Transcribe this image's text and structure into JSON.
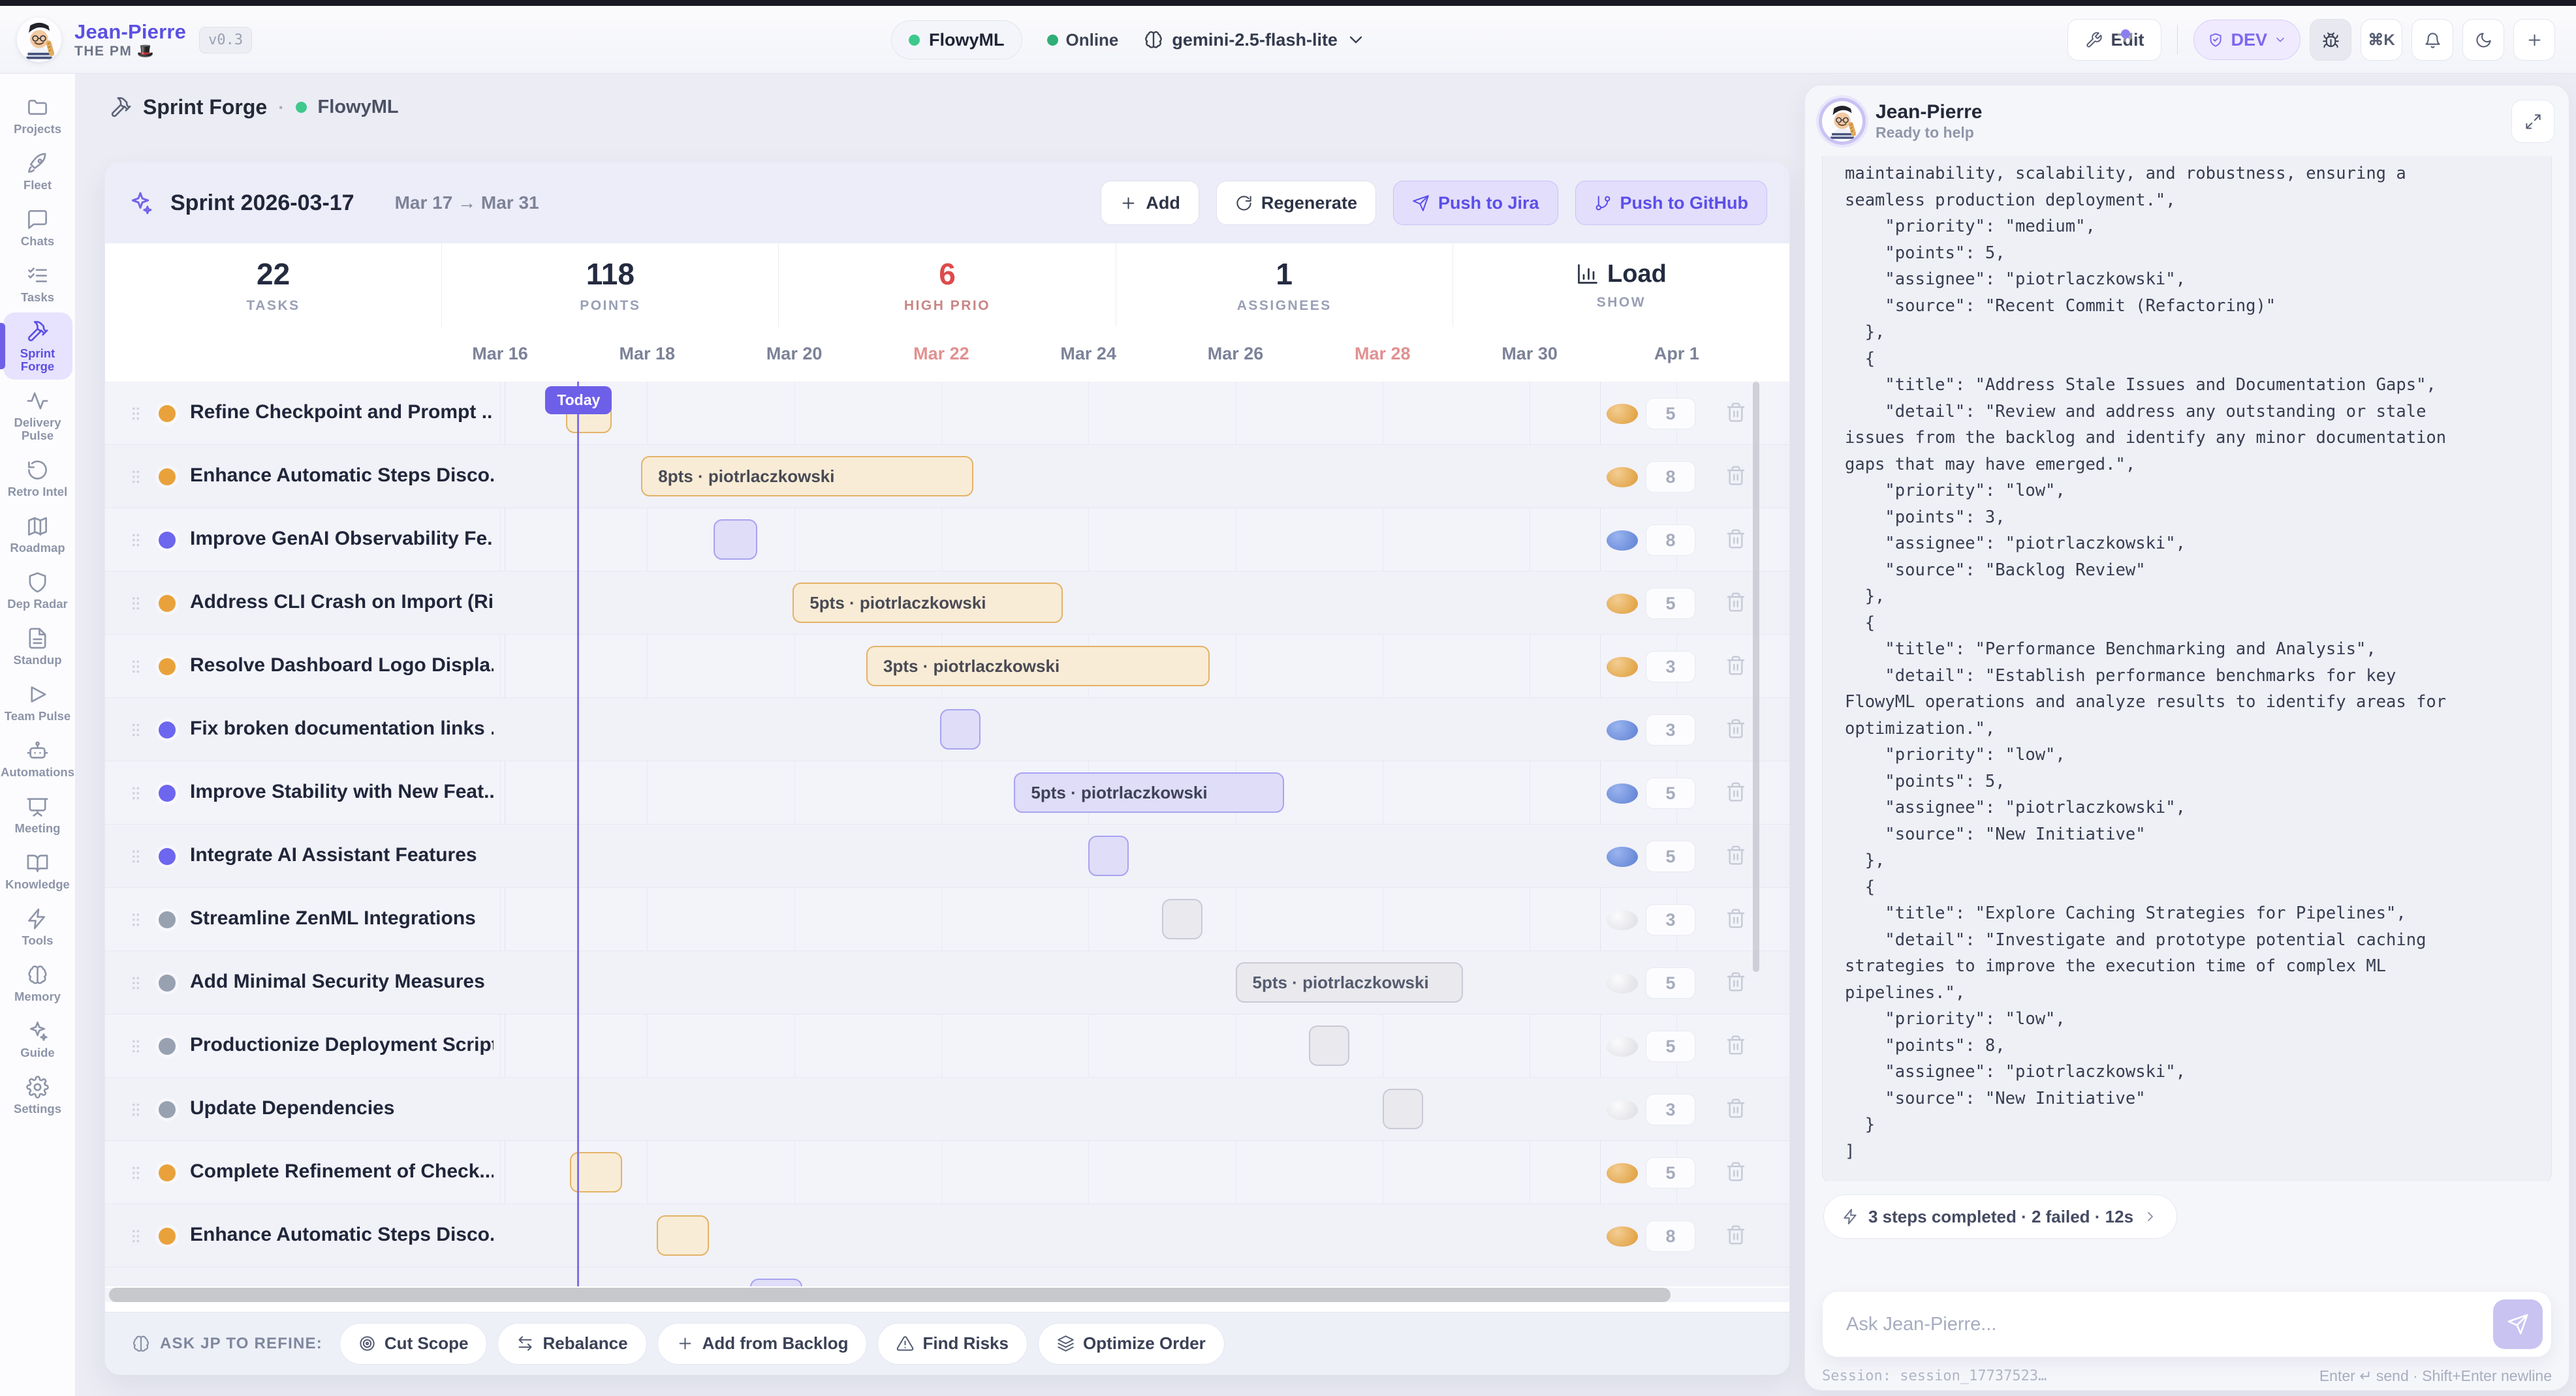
{
  "header": {
    "app_name": "Jean-Pierre",
    "app_subtitle": "THE PM 🎩",
    "version_badge": "v0.3",
    "project_pill": "FlowyML",
    "online_label": "Online",
    "model": "gemini-2.5-flash-lite",
    "edit_label": "Edit",
    "env_badge": "DEV",
    "shortcut": "⌘K"
  },
  "sidebar": {
    "items": [
      {
        "label": "Projects",
        "icon": "folder"
      },
      {
        "label": "Fleet",
        "icon": "rocket"
      },
      {
        "label": "Chats",
        "icon": "chat"
      },
      {
        "label": "Tasks",
        "icon": "tasks"
      },
      {
        "label": "Sprint Forge",
        "icon": "hammer",
        "active": true
      },
      {
        "label": "Delivery Pulse",
        "icon": "activity"
      },
      {
        "label": "Retro Intel",
        "icon": "rotate"
      },
      {
        "label": "Roadmap",
        "icon": "map"
      },
      {
        "label": "Dep Radar",
        "icon": "shield"
      },
      {
        "label": "Standup",
        "icon": "doc"
      },
      {
        "label": "Team Pulse",
        "icon": "play"
      },
      {
        "label": "Automations",
        "icon": "bot"
      },
      {
        "label": "Meeting",
        "icon": "presentation"
      },
      {
        "label": "Knowledge",
        "icon": "book"
      },
      {
        "label": "Tools",
        "icon": "zap"
      },
      {
        "label": "Memory",
        "icon": "brain"
      },
      {
        "label": "Guide",
        "icon": "sparkles"
      },
      {
        "label": "Settings",
        "icon": "gear"
      }
    ]
  },
  "breadcrumb": {
    "tool": "Sprint Forge",
    "separator": "·",
    "project": "FlowyML"
  },
  "sprint": {
    "title": "Sprint 2026-03-17",
    "range": "Mar 17 → Mar 31",
    "buttons": {
      "add": "Add",
      "regenerate": "Regenerate",
      "push_jira": "Push to Jira",
      "push_github": "Push to GitHub"
    }
  },
  "stats": [
    {
      "value": "22",
      "label": "TASKS"
    },
    {
      "value": "118",
      "label": "POINTS"
    },
    {
      "value": "6",
      "label": "HIGH PRIO",
      "accent": "#dd4b4b",
      "label_accent": "#c98585"
    },
    {
      "value": "1",
      "label": "ASSIGNEES"
    },
    {
      "value": "Load",
      "label": "SHOW",
      "icon": "barchart"
    }
  ],
  "timeline": {
    "dates": [
      {
        "label": "Mar 16",
        "weekend": false
      },
      {
        "label": "Mar 18",
        "weekend": false
      },
      {
        "label": "Mar 20",
        "weekend": false
      },
      {
        "label": "Mar 22",
        "weekend": true
      },
      {
        "label": "Mar 24",
        "weekend": false
      },
      {
        "label": "Mar 26",
        "weekend": false
      },
      {
        "label": "Mar 28",
        "weekend": true
      },
      {
        "label": "Mar 30",
        "weekend": false
      },
      {
        "label": "Apr 1",
        "weekend": false
      }
    ],
    "today_label": "Today",
    "today_day": 1.05
  },
  "tasks": [
    {
      "name": "Refine Checkpoint and Prompt ...",
      "priority": "high",
      "points": "5",
      "bar": {
        "type": "small",
        "color": "orange",
        "start": 0.9,
        "duration": 0.62
      }
    },
    {
      "name": "Enhance Automatic Steps Disco...",
      "priority": "high",
      "points": "8",
      "bar": {
        "type": "labeled",
        "color": "orange",
        "start": 1.92,
        "duration": 4.52,
        "label": "8pts · piotrlaczkowski"
      }
    },
    {
      "name": "Improve GenAI Observability Fe...",
      "priority": "medium",
      "points": "8",
      "bar": {
        "type": "small",
        "color": "purple",
        "start": 2.9,
        "duration": 0.6
      }
    },
    {
      "name": "Address CLI Crash on Import (Ri...",
      "priority": "high",
      "points": "5",
      "bar": {
        "type": "labeled",
        "color": "orange",
        "start": 3.98,
        "duration": 3.67,
        "label": "5pts · piotrlaczkowski"
      }
    },
    {
      "name": "Resolve Dashboard Logo Displa...",
      "priority": "high",
      "points": "3",
      "bar": {
        "type": "labeled",
        "color": "orange",
        "start": 4.98,
        "duration": 4.67,
        "label": "3pts · piotrlaczkowski"
      }
    },
    {
      "name": "Fix broken documentation links ...",
      "priority": "medium",
      "points": "3",
      "bar": {
        "type": "small",
        "color": "purple",
        "start": 5.98,
        "duration": 0.55
      }
    },
    {
      "name": "Improve Stability with New Feat...",
      "priority": "medium",
      "points": "5",
      "bar": {
        "type": "labeled",
        "color": "purple",
        "start": 6.99,
        "duration": 3.67,
        "label": "5pts · piotrlaczkowski"
      }
    },
    {
      "name": "Integrate AI Assistant Features",
      "priority": "medium",
      "points": "5",
      "bar": {
        "type": "small",
        "color": "purple",
        "start": 8.0,
        "duration": 0.55
      }
    },
    {
      "name": "Streamline ZenML Integrations",
      "priority": "low",
      "points": "3",
      "bar": {
        "type": "small",
        "color": "gray",
        "start": 9.0,
        "duration": 0.55
      }
    },
    {
      "name": "Add Minimal Security Measures",
      "priority": "low",
      "points": "5",
      "bar": {
        "type": "labeled",
        "color": "gray",
        "start": 10.0,
        "duration": 3.09,
        "label": "5pts · piotrlaczkowski"
      }
    },
    {
      "name": "Productionize Deployment Scripts",
      "priority": "low",
      "points": "5",
      "bar": {
        "type": "small",
        "color": "gray",
        "start": 11.0,
        "duration": 0.55
      }
    },
    {
      "name": "Update Dependencies",
      "priority": "low",
      "points": "3",
      "bar": {
        "type": "small",
        "color": "gray",
        "start": 12.0,
        "duration": 0.55
      }
    },
    {
      "name": "Complete Refinement of Check...",
      "priority": "high",
      "points": "5",
      "bar": {
        "type": "small",
        "color": "orange",
        "start": 0.95,
        "duration": 0.71
      }
    },
    {
      "name": "Enhance Automatic Steps Disco...",
      "priority": "high",
      "points": "8",
      "bar": {
        "type": "small",
        "color": "orange",
        "start": 2.13,
        "duration": 0.71
      }
    }
  ],
  "partial_bar": {
    "color": "purple",
    "start": 3.4,
    "duration": 0.71
  },
  "refine_bar": {
    "label": "ASK JP TO REFINE:",
    "actions": [
      {
        "label": "Cut Scope",
        "icon": "target"
      },
      {
        "label": "Rebalance",
        "icon": "swap"
      },
      {
        "label": "Add from Backlog",
        "icon": "plus"
      },
      {
        "label": "Find Risks",
        "icon": "warning"
      },
      {
        "label": "Optimize Order",
        "icon": "layers"
      }
    ]
  },
  "assistant": {
    "name": "Jean-Pierre",
    "status": "Ready to help",
    "message_lines": [
      "maintainability, scalability, and robustness, ensuring a",
      "seamless production deployment.\",",
      "    \"priority\": \"medium\",",
      "    \"points\": 5,",
      "    \"assignee\": \"piotrlaczkowski\",",
      "    \"source\": \"Recent Commit (Refactoring)\"",
      "  },",
      "  {",
      "    \"title\": \"Address Stale Issues and Documentation Gaps\",",
      "    \"detail\": \"Review and address any outstanding or stale",
      "issues from the backlog and identify any minor documentation",
      "gaps that may have emerged.\",",
      "    \"priority\": \"low\",",
      "    \"points\": 3,",
      "    \"assignee\": \"piotrlaczkowski\",",
      "    \"source\": \"Backlog Review\"",
      "  },",
      "  {",
      "    \"title\": \"Performance Benchmarking and Analysis\",",
      "    \"detail\": \"Establish performance benchmarks for key",
      "FlowyML operations and analyze results to identify areas for",
      "optimization.\",",
      "    \"priority\": \"low\",",
      "    \"points\": 5,",
      "    \"assignee\": \"piotrlaczkowski\",",
      "    \"source\": \"New Initiative\"",
      "  },",
      "  {",
      "    \"title\": \"Explore Caching Strategies for Pipelines\",",
      "    \"detail\": \"Investigate and prototype potential caching",
      "strategies to improve the execution time of complex ML",
      "pipelines.\",",
      "    \"priority\": \"low\",",
      "    \"points\": 8,",
      "    \"assignee\": \"piotrlaczkowski\",",
      "    \"source\": \"New Initiative\"",
      "  }",
      "]"
    ],
    "steps_summary": "3 steps completed · 2 failed · 12s",
    "input_placeholder": "Ask Jean-Pierre...",
    "session": "Session: session_17737523…",
    "hint": "Enter ↵ send · Shift+Enter newline"
  }
}
